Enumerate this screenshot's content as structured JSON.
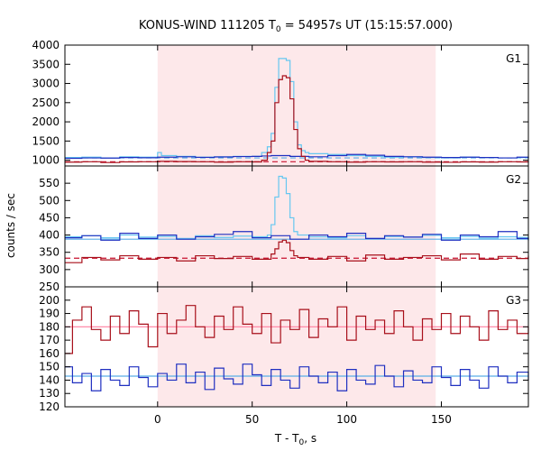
{
  "chart_data": {
    "type": "line",
    "title": "KONUS-WIND 111205 T",
    "title_sub": "0",
    "title_rest": " = 54957s UT (15:15:57.000)",
    "xlabel": "T - T",
    "xlabel_sub": "0",
    "xlabel_rest": ", s",
    "ylabel": "counts / sec",
    "xlim": [
      -49,
      196
    ],
    "xticks": [
      0,
      50,
      100,
      150
    ],
    "highlight_interval": [
      0,
      147
    ],
    "colors": {
      "highlight": "#fde8ea",
      "blue_hist": "#1f2fc0",
      "red_hist": "#a80f1a",
      "sum_hist": "#66c7f0",
      "pink_hist": "#ff7fa0",
      "blue_bg": "#5aaee8",
      "red_bg": "#c8102e",
      "pink_bg": "#ff7f9f"
    },
    "panels": [
      {
        "name": "G1",
        "ylim": [
          850,
          4000
        ],
        "yticks": [
          1000,
          1500,
          2000,
          2500,
          3000,
          3500,
          4000
        ],
        "background": [
          {
            "level": 1060,
            "style": "dashed",
            "color_key": "blue_bg"
          },
          {
            "level": 960,
            "style": "dashed",
            "color_key": "red_bg"
          }
        ],
        "series": [
          {
            "x": [
              -49,
              -40,
              -30,
              -20,
              -10,
              0,
              2,
              10,
              20,
              30,
              40,
              50,
              55,
              58,
              60,
              62,
              64,
              66,
              68,
              70,
              72,
              74,
              76,
              78,
              80,
              90,
              100,
              110,
              120,
              130,
              140,
              150,
              160,
              170,
              180,
              190,
              196
            ],
            "y": [
              1070,
              1080,
              1060,
              1090,
              1080,
              1200,
              1120,
              1100,
              1080,
              1090,
              1100,
              1100,
              1200,
              1350,
              1700,
              2900,
              3650,
              3650,
              3600,
              3050,
              2000,
              1400,
              1250,
              1200,
              1170,
              1150,
              1120,
              1100,
              1080,
              1090,
              1070,
              1060,
              1080,
              1070,
              1060,
              1070,
              1050
            ],
            "color_key": "sum_hist"
          },
          {
            "x": [
              -49,
              -40,
              -30,
              -20,
              -10,
              0,
              10,
              20,
              30,
              40,
              50,
              55,
              60,
              70,
              80,
              90,
              100,
              110,
              120,
              130,
              140,
              150,
              160,
              170,
              180,
              190,
              196
            ],
            "y": [
              1050,
              1060,
              1055,
              1070,
              1065,
              1080,
              1090,
              1075,
              1085,
              1095,
              1100,
              1110,
              1120,
              1100,
              1090,
              1120,
              1150,
              1130,
              1100,
              1090,
              1080,
              1070,
              1080,
              1070,
              1060,
              1080,
              1060
            ],
            "color_key": "blue_hist"
          },
          {
            "x": [
              -49,
              -40,
              -30,
              -20,
              -10,
              0,
              10,
              20,
              30,
              40,
              50,
              55,
              58,
              60,
              62,
              64,
              66,
              68,
              70,
              72,
              74,
              76,
              78,
              80,
              90,
              100,
              110,
              120,
              130,
              140,
              150,
              160,
              170,
              180,
              190,
              196
            ],
            "y": [
              950,
              960,
              940,
              955,
              960,
              970,
              965,
              960,
              950,
              960,
              955,
              1000,
              1200,
              1500,
              2500,
              3100,
              3200,
              3150,
              2600,
              1800,
              1300,
              1100,
              1000,
              970,
              960,
              950,
              960,
              955,
              960,
              950,
              945,
              955,
              950,
              960,
              955,
              950
            ],
            "color_key": "red_hist"
          }
        ]
      },
      {
        "name": "G2",
        "ylim": [
          250,
          600
        ],
        "yticks": [
          250,
          300,
          350,
          400,
          450,
          500,
          550
        ],
        "background": [
          {
            "level": 388,
            "style": "solid",
            "color_key": "blue_bg"
          },
          {
            "level": 333,
            "style": "dashed",
            "color_key": "red_bg"
          }
        ],
        "series": [
          {
            "x": [
              -49,
              -40,
              -30,
              -20,
              -10,
              0,
              10,
              20,
              30,
              40,
              50,
              58,
              60,
              62,
              64,
              66,
              68,
              70,
              72,
              74,
              80,
              90,
              100,
              110,
              120,
              130,
              140,
              150,
              160,
              170,
              180,
              190,
              196
            ],
            "y": [
              395,
              398,
              392,
              400,
              394,
              396,
              390,
              398,
              393,
              397,
              395,
              400,
              430,
              510,
              570,
              565,
              520,
              450,
              410,
              400,
              395,
              392,
              398,
              390,
              396,
              394,
              399,
              392,
              396,
              391,
              395,
              393,
              388
            ],
            "color_key": "sum_hist"
          },
          {
            "x": [
              -49,
              -40,
              -30,
              -20,
              -10,
              0,
              10,
              20,
              30,
              40,
              50,
              60,
              70,
              80,
              90,
              100,
              110,
              120,
              130,
              140,
              150,
              160,
              170,
              180,
              190,
              196
            ],
            "y": [
              392,
              398,
              385,
              405,
              390,
              400,
              388,
              395,
              402,
              410,
              392,
              398,
              388,
              400,
              395,
              405,
              390,
              398,
              394,
              402,
              385,
              400,
              395,
              410,
              390,
              385
            ],
            "color_key": "blue_hist"
          },
          {
            "x": [
              -49,
              -40,
              -30,
              -20,
              -10,
              0,
              10,
              20,
              30,
              40,
              50,
              60,
              62,
              64,
              66,
              68,
              70,
              72,
              74,
              80,
              90,
              100,
              110,
              120,
              130,
              140,
              150,
              160,
              170,
              180,
              190,
              196
            ],
            "y": [
              320,
              335,
              328,
              340,
              330,
              335,
              325,
              340,
              332,
              338,
              330,
              345,
              360,
              380,
              385,
              378,
              355,
              340,
              335,
              330,
              338,
              325,
              342,
              330,
              335,
              340,
              328,
              345,
              330,
              338,
              332,
              340
            ],
            "color_key": "red_hist"
          }
        ]
      },
      {
        "name": "G3",
        "ylim": [
          120,
          210
        ],
        "yticks": [
          120,
          130,
          140,
          150,
          160,
          170,
          180,
          190,
          200
        ],
        "background": [
          {
            "level": 180,
            "style": "solid",
            "color_key": "pink_bg"
          },
          {
            "level": 143,
            "style": "solid",
            "color_key": "blue_bg"
          }
        ],
        "series": [
          {
            "x": [
              -49,
              -45,
              -40,
              -35,
              -30,
              -25,
              -20,
              -15,
              -10,
              -5,
              0,
              5,
              10,
              15,
              20,
              25,
              30,
              35,
              40,
              45,
              50,
              55,
              60,
              65,
              70,
              75,
              80,
              85,
              90,
              95,
              100,
              105,
              110,
              115,
              120,
              125,
              130,
              135,
              140,
              145,
              150,
              155,
              160,
              165,
              170,
              175,
              180,
              185,
              190,
              196
            ],
            "y": [
              160,
              185,
              195,
              178,
              170,
              188,
              175,
              192,
              182,
              165,
              190,
              175,
              185,
              196,
              180,
              172,
              188,
              178,
              195,
              182,
              175,
              190,
              168,
              185,
              178,
              193,
              172,
              186,
              180,
              195,
              170,
              188,
              178,
              185,
              175,
              192,
              180,
              170,
              186,
              178,
              190,
              175,
              188,
              180,
              170,
              192,
              178,
              185,
              175,
              180
            ],
            "color_key": "red_hist"
          },
          {
            "x": [
              -49,
              -45,
              -40,
              -35,
              -30,
              -25,
              -20,
              -15,
              -10,
              -5,
              0,
              5,
              10,
              15,
              20,
              25,
              30,
              35,
              40,
              45,
              50,
              55,
              60,
              65,
              70,
              75,
              80,
              85,
              90,
              95,
              100,
              105,
              110,
              115,
              120,
              125,
              130,
              135,
              140,
              145,
              150,
              155,
              160,
              165,
              170,
              175,
              180,
              185,
              190,
              196
            ],
            "y": [
              150,
              138,
              145,
              132,
              148,
              140,
              136,
              150,
              142,
              135,
              145,
              140,
              152,
              138,
              146,
              133,
              149,
              141,
              137,
              152,
              144,
              136,
              148,
              140,
              134,
              150,
              143,
              138,
              146,
              132,
              148,
              140,
              137,
              151,
              143,
              135,
              147,
              140,
              138,
              150,
              142,
              136,
              148,
              140,
              134,
              150,
              143,
              138,
              146,
              140
            ],
            "color_key": "blue_hist"
          }
        ]
      }
    ]
  }
}
